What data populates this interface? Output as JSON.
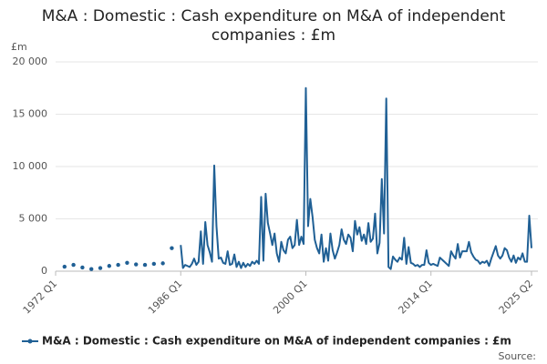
{
  "chart_data": {
    "type": "line",
    "title": [
      "M&A : Domestic : Cash expenditure on M&A of independent",
      "companies : £m"
    ],
    "y_label": "£m",
    "source": "Source:",
    "xlim": [
      1972,
      2025.25
    ],
    "xticks": [
      {
        "value": 1972,
        "label": "1972 Q1"
      },
      {
        "value": 1986,
        "label": "1986 Q1"
      },
      {
        "value": 2000,
        "label": "2000 Q1"
      },
      {
        "value": 2014,
        "label": "2014 Q1"
      },
      {
        "value": 2025.25,
        "label": "2025 Q2"
      }
    ],
    "ylim": [
      0,
      20000
    ],
    "yticks": [
      0,
      {
        "value": 5000,
        "label": "5 000"
      },
      {
        "value": 10000,
        "label": "10 000"
      },
      {
        "value": 15000,
        "label": "15 000"
      },
      {
        "value": 20000,
        "label": "20 000"
      }
    ],
    "grid": true,
    "x": [
      1973,
      1974,
      1975,
      1976,
      1977,
      1978,
      1979,
      1980,
      1981,
      1982,
      1983,
      1984,
      1985,
      1986,
      1986.25,
      1986.5,
      1986.75,
      1987,
      1987.25,
      1987.5,
      1987.75,
      1988,
      1988.25,
      1988.5,
      1988.75,
      1989,
      1989.25,
      1989.5,
      1989.75,
      1990,
      1990.25,
      1990.5,
      1990.75,
      1991,
      1991.25,
      1991.5,
      1991.75,
      1992,
      1992.25,
      1992.5,
      1992.75,
      1993,
      1993.25,
      1993.5,
      1993.75,
      1994,
      1994.25,
      1994.5,
      1994.75,
      1995,
      1995.25,
      1995.5,
      1995.75,
      1996,
      1996.25,
      1996.5,
      1996.75,
      1997,
      1997.25,
      1997.5,
      1997.75,
      1998,
      1998.25,
      1998.5,
      1998.75,
      1999,
      1999.25,
      1999.5,
      1999.75,
      2000,
      2000.25,
      2000.5,
      2000.75,
      2001,
      2001.25,
      2001.5,
      2001.75,
      2002,
      2002.25,
      2002.5,
      2002.75,
      2003,
      2003.25,
      2003.5,
      2003.75,
      2004,
      2004.25,
      2004.5,
      2004.75,
      2005,
      2005.25,
      2005.5,
      2005.75,
      2006,
      2006.25,
      2006.5,
      2006.75,
      2007,
      2007.25,
      2007.5,
      2007.75,
      2008,
      2008.25,
      2008.5,
      2008.75,
      2009,
      2009.25,
      2009.5,
      2009.75,
      2010,
      2010.25,
      2010.5,
      2010.75,
      2011,
      2011.25,
      2011.5,
      2011.75,
      2012,
      2012.25,
      2012.5,
      2012.75,
      2013,
      2013.25,
      2013.5,
      2013.75,
      2014,
      2014.25,
      2014.5,
      2014.75,
      2015,
      2015.25,
      2015.5,
      2015.75,
      2016,
      2016.25,
      2016.5,
      2016.75,
      2017,
      2017.25,
      2017.5,
      2017.75,
      2018,
      2018.25,
      2018.5,
      2018.75,
      2019,
      2019.25,
      2019.5,
      2019.75,
      2020,
      2020.25,
      2020.5,
      2020.75,
      2021,
      2021.25,
      2021.5,
      2021.75,
      2022,
      2022.25,
      2022.5,
      2022.75,
      2023,
      2023.25,
      2023.5,
      2023.75,
      2024,
      2024.25,
      2024.5,
      2024.75,
      2025,
      2025.25
    ],
    "series": [
      {
        "name": "M&A : Domestic : Cash expenditure on M&A of independent companies : £m",
        "color": "#206095",
        "values": [
          430,
          600,
          350,
          200,
          300,
          500,
          600,
          800,
          650,
          600,
          700,
          750,
          2200,
          2500,
          300,
          600,
          500,
          400,
          700,
          1200,
          600,
          900,
          3800,
          700,
          4700,
          2500,
          1800,
          900,
          10100,
          4300,
          1200,
          1300,
          800,
          700,
          1900,
          600,
          700,
          1600,
          400,
          900,
          300,
          800,
          400,
          700,
          500,
          900,
          700,
          1000,
          700,
          7100,
          1000,
          7400,
          4600,
          3600,
          2500,
          3600,
          1700,
          900,
          2800,
          2000,
          1700,
          3000,
          3300,
          2200,
          2500,
          4900,
          2500,
          3300,
          2600,
          17500,
          4300,
          6900,
          5200,
          3000,
          2200,
          1700,
          3500,
          900,
          2200,
          1000,
          3600,
          2000,
          1200,
          1800,
          2500,
          4000,
          3000,
          2600,
          3500,
          3200,
          1900,
          4800,
          3500,
          4200,
          2900,
          3500,
          2600,
          4600,
          2800,
          3100,
          5500,
          1700,
          2700,
          8800,
          3600,
          16500,
          400,
          200,
          1400,
          1100,
          900,
          1300,
          1100,
          3200,
          700,
          2300,
          800,
          700,
          500,
          600,
          400,
          600,
          600,
          2000,
          800,
          600,
          700,
          600,
          500,
          1300,
          1100,
          900,
          700,
          500,
          1900,
          1500,
          1200,
          2600,
          1300,
          1900,
          1900,
          1900,
          2800,
          1800,
          1400,
          1100,
          1000,
          700,
          900,
          800,
          1000,
          500,
          1200,
          1800,
          2400,
          1500,
          1200,
          1500,
          2200,
          2000,
          1300,
          900,
          1500,
          800,
          1300,
          1100,
          1700,
          900,
          900,
          5300,
          2200
        ]
      }
    ]
  }
}
